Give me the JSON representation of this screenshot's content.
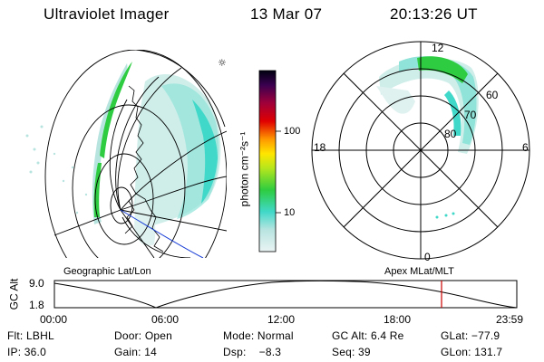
{
  "header": {
    "instrument": "Ultraviolet Imager",
    "date": "13 Mar 07",
    "time": "20:13:26 UT"
  },
  "colorbar": {
    "unit_label": "photon cm⁻²s⁻¹",
    "tick_labels": [
      "100",
      "10"
    ]
  },
  "polar_plot": {
    "mlt_labels": {
      "top": "12",
      "left": "18",
      "right": "6",
      "bottom": "0"
    },
    "lat_labels": [
      "60",
      "70",
      "80"
    ]
  },
  "geo_map": {
    "caption": "Geographic Lat/Lon"
  },
  "apex_caption": "Apex MLat/MLT",
  "altitude_panel": {
    "axis_label": "GC Alt",
    "y_ticks": [
      "9.0",
      "1.8"
    ],
    "x_ticks": [
      "00:00",
      "06:00",
      "12:00",
      "18:00",
      "23:59"
    ],
    "current_time_marker": "20:13"
  },
  "info": {
    "row1": [
      "Flt: LBHL",
      "Door: Open",
      "Mode: Normal",
      "GC Alt: 6.4 Re",
      "GLat: −77.9"
    ],
    "row2": [
      "IP: 36.0",
      "Gain: 14",
      "Dsp:    −8.3",
      "Seq: 39",
      "GLon: 131.7"
    ]
  },
  "colors": {
    "aurora_green": "#2ecc40",
    "aurora_cyan": "#40d8c8",
    "faint_cyan": "#cfeeea",
    "marker_red": "#cc0000",
    "boundary_blue": "#1a3fd6"
  }
}
